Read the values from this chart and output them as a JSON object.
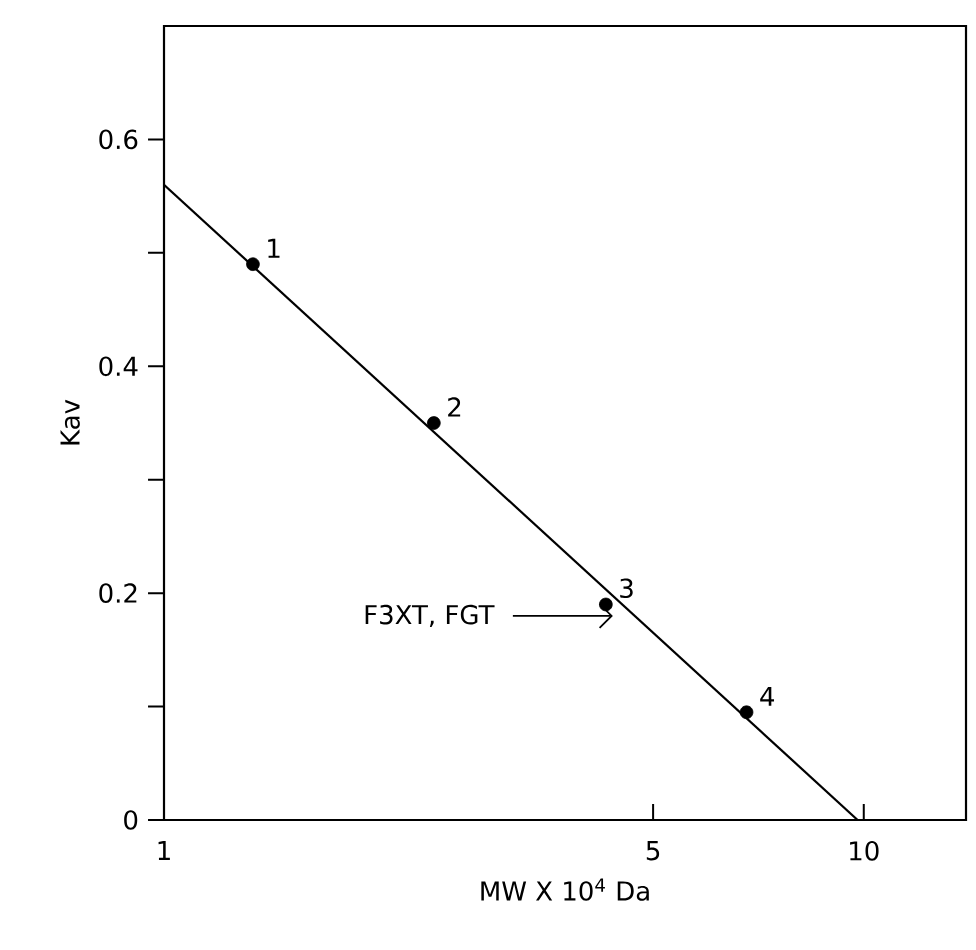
{
  "chart_data": {
    "type": "scatter",
    "xlabel": "MW X 10$^{4}$ Da",
    "ylabel": "Kav",
    "log": "x",
    "xlim": [
      1,
      14
    ],
    "ylim": [
      0,
      0.7
    ],
    "xticks": [
      1,
      5,
      10
    ],
    "yticks": [
      0,
      {
        "value": 0.1,
        "label": null
      },
      0.2,
      {
        "value": 0.3,
        "label": null
      },
      0.4,
      {
        "value": 0.5,
        "label": null
      },
      0.6
    ],
    "grid": false,
    "series": [
      {
        "marker": "circle",
        "color": "#000000",
        "x": [
          1.34,
          2.43,
          4.28,
          6.8
        ],
        "values": [
          0.49,
          0.35,
          0.19,
          0.095
        ]
      },
      {
        "type": "line",
        "marker": "none",
        "line_style": "solid",
        "color": "#000000",
        "x": [
          1,
          9.8
        ],
        "values": [
          0.56,
          0
        ]
      }
    ],
    "annotations": [
      {
        "text": "1",
        "x": 1.34,
        "y": 0.49
      },
      {
        "text": "2",
        "x": 2.43,
        "y": 0.35
      },
      {
        "text": "3",
        "x": 4.28,
        "y": 0.19
      },
      {
        "text": "4",
        "x": 6.8,
        "y": 0.095
      },
      "F3XT, FGT"
    ]
  }
}
